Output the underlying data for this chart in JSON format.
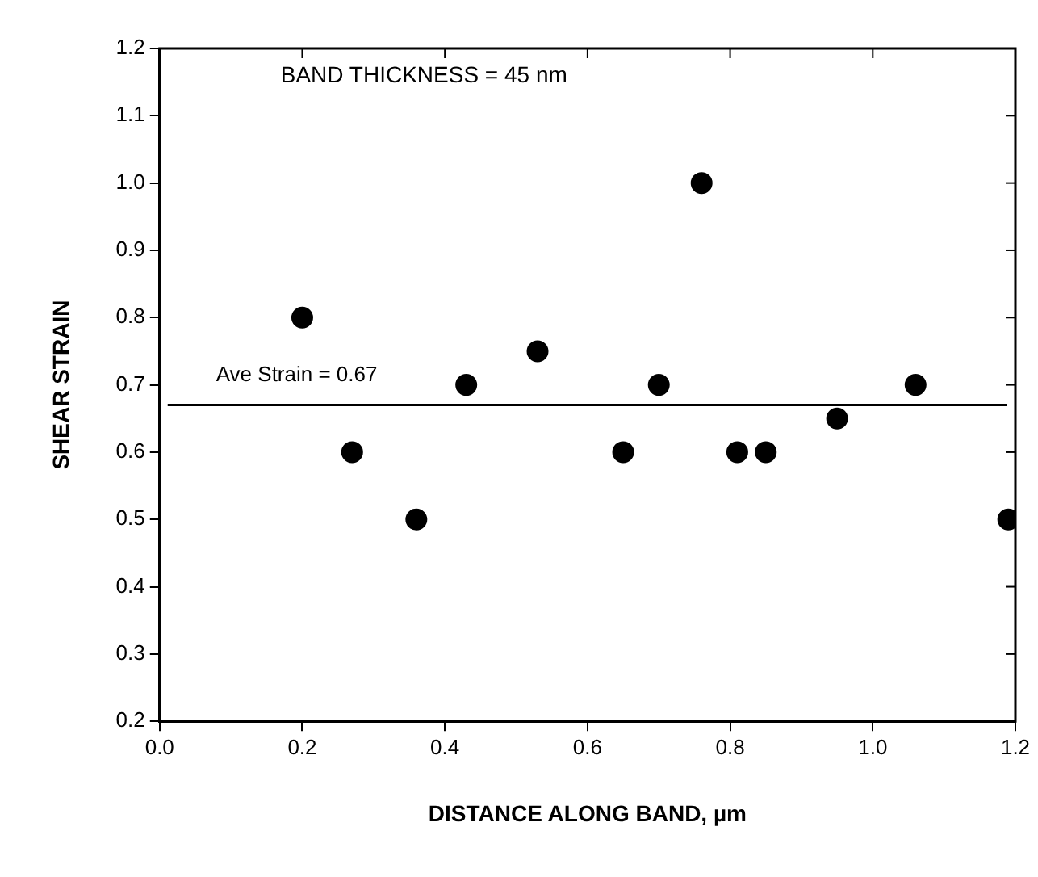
{
  "chart_data": {
    "type": "scatter",
    "xlabel": "DISTANCE ALONG BAND, µm",
    "ylabel": "SHEAR STRAIN",
    "x": [
      0.2,
      0.27,
      0.36,
      0.43,
      0.53,
      0.65,
      0.7,
      0.76,
      0.81,
      0.85,
      0.95,
      1.06,
      1.19
    ],
    "series": [
      {
        "color": "#000000",
        "values": [
          0.8,
          0.6,
          0.5,
          0.7,
          0.75,
          0.6,
          0.7,
          1.0,
          0.6,
          0.6,
          0.65,
          0.7,
          0.5
        ]
      }
    ],
    "xlim": [
      0,
      1.2
    ],
    "xticks": [
      {
        "value": 0,
        "label": "0.0"
      },
      0.2,
      0.4,
      0.6,
      0.8,
      {
        "value": 1,
        "label": "1.0"
      },
      1.2
    ],
    "ylim": [
      0.2,
      1.2
    ],
    "yticks": [
      0.2,
      0.3,
      0.4,
      0.5,
      0.6,
      0.7,
      0.8,
      0.9,
      {
        "value": 1,
        "label": "1.0"
      },
      1.1,
      1.2
    ],
    "ref_lines": [
      {
        "axis": "y",
        "value": 0.67,
        "label": "Ave Strain = 0.67",
        "color": "#000000"
      }
    ],
    "annotations": [
      "BAND THICKNESS = 45 nm"
    ],
    "marker": "circle",
    "grid": false,
    "legend": false
  }
}
